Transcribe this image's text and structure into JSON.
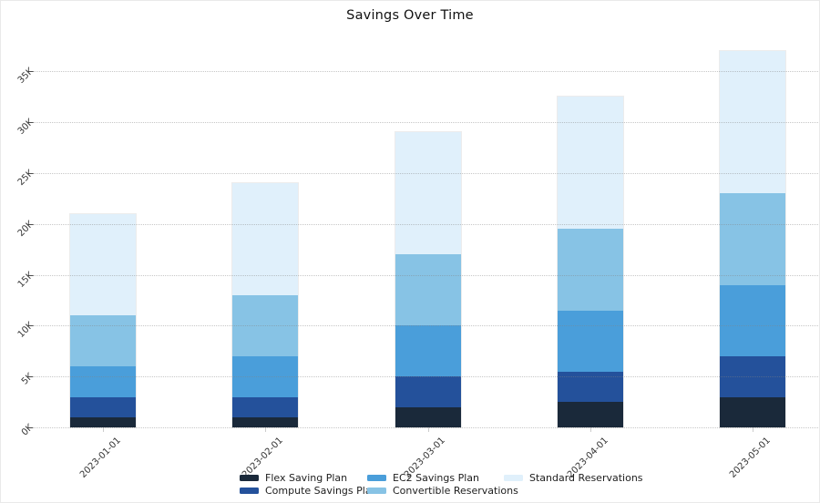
{
  "title": "Savings Over Time",
  "chart_data": {
    "type": "bar",
    "stacked": true,
    "title": "Savings Over Time",
    "xlabel": "",
    "ylabel": "",
    "categories": [
      "2023-01-01",
      "2023-02-01",
      "2023-03-01",
      "2023-04-01",
      "2023-05-01"
    ],
    "series": [
      {
        "name": "Flex Saving Plan",
        "color": "#1A293A",
        "values": [
          1000,
          1000,
          2000,
          2500,
          3000
        ]
      },
      {
        "name": "Compute Savings Plan",
        "color": "#24519B",
        "values": [
          2000,
          2000,
          3000,
          3000,
          4000
        ]
      },
      {
        "name": "EC2 Savings Plan",
        "color": "#4A9EDA",
        "values": [
          3000,
          4000,
          5000,
          6000,
          7000
        ]
      },
      {
        "name": "Convertible Reservations",
        "color": "#87C3E5",
        "values": [
          5000,
          6000,
          7000,
          8000,
          9000
        ]
      },
      {
        "name": "Standard Reservations",
        "color": "#E0F0FB",
        "values": [
          10000,
          11000,
          12000,
          13000,
          14000
        ]
      }
    ],
    "totals": [
      21000,
      24000,
      29000,
      32500,
      37000
    ],
    "ylim": [
      0,
      38000
    ],
    "ytick_labels": [
      "0K",
      "5K",
      "10K",
      "15K",
      "20K",
      "25K",
      "30K",
      "35K"
    ],
    "ytick_values": [
      0,
      5000,
      10000,
      15000,
      20000,
      25000,
      30000,
      35000
    ],
    "grid": "horizontal-dotted",
    "legend_position": "bottom-center",
    "tick_angle_deg": -45
  }
}
